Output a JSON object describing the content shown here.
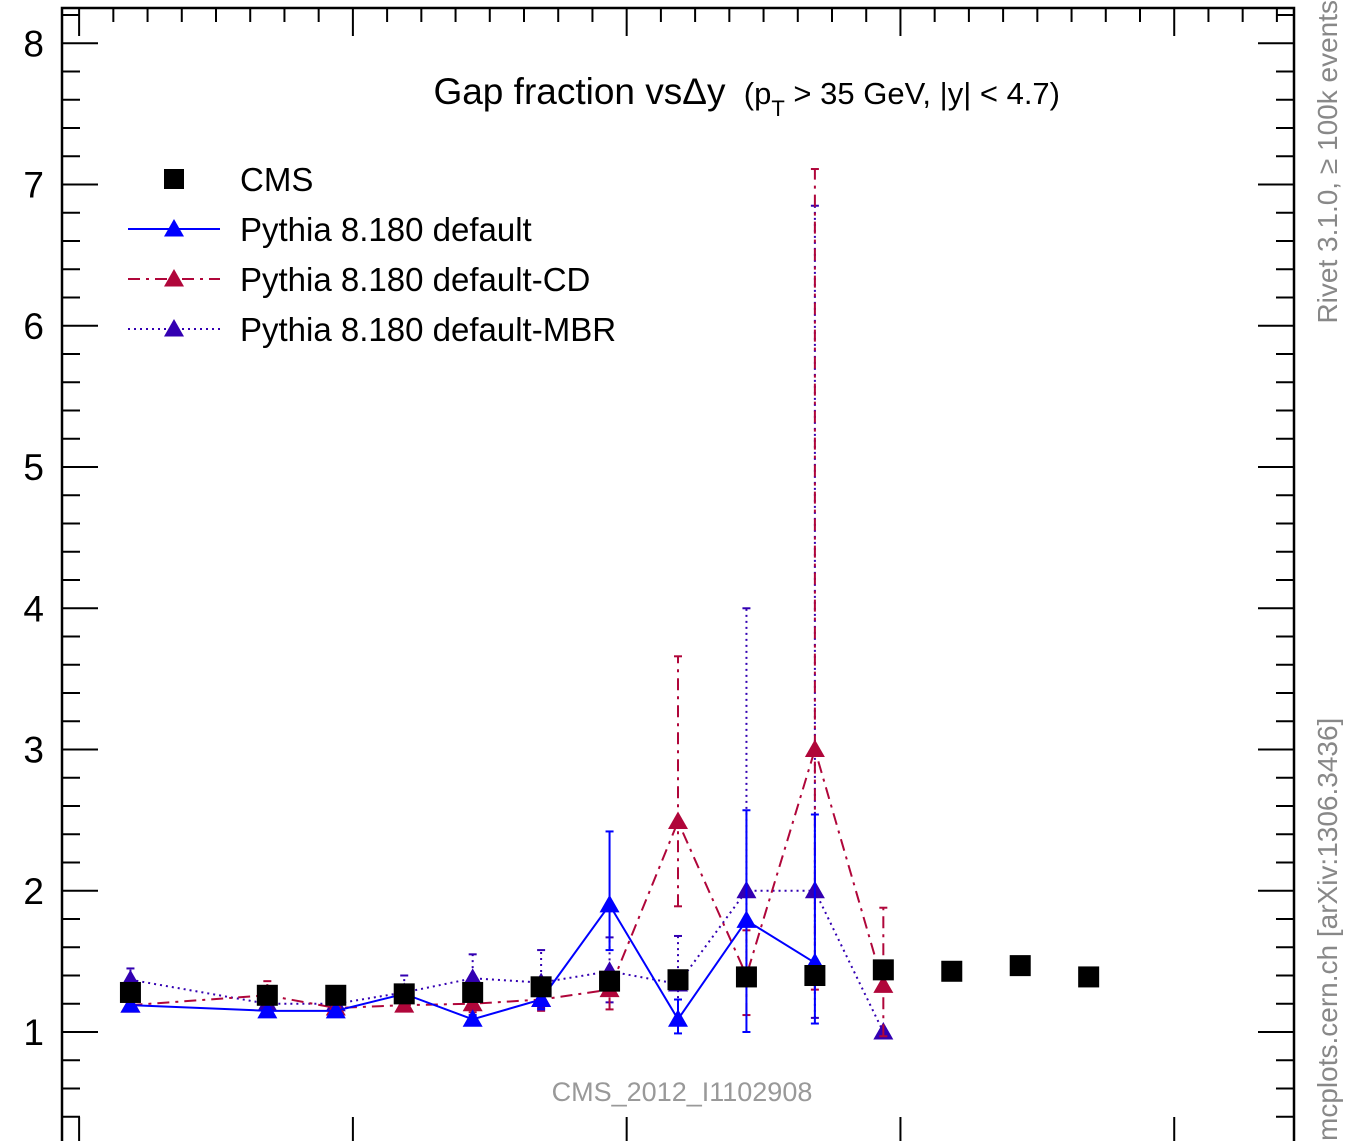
{
  "chart_data": {
    "type": "scatter",
    "title": "Gap fraction vsΔy",
    "title_suffix": "(p_T > 35 GeV, |y| < 4.7)",
    "title_suffix_parts": {
      "open": "(p",
      "sub": "T",
      "rest": " > 35 GeV, |y| < 4.7)"
    },
    "xlabel": "",
    "ylabel": "",
    "xlim": [
      0,
      9
    ],
    "ylim": [
      0.2,
      8.25
    ],
    "x_tick_positions": [
      0.125,
      2.125,
      4.125,
      6.125,
      8.125
    ],
    "y_ticks": [
      1,
      2,
      3,
      4,
      5,
      6,
      7,
      8
    ],
    "y_tick_labels": [
      "1",
      "2",
      "3",
      "4",
      "5",
      "6",
      "7",
      "8"
    ],
    "legend_position": "top-left",
    "grid": false,
    "series": [
      {
        "name": "CMS",
        "style": "marker-square",
        "color": "#000000",
        "x": [
          0.5,
          1.5,
          2.0,
          2.5,
          3.0,
          3.5,
          4.0,
          4.5,
          5.0,
          5.5,
          6.0,
          6.5,
          7.0,
          7.5
        ],
        "y": [
          1.28,
          1.26,
          1.26,
          1.27,
          1.28,
          1.32,
          1.36,
          1.37,
          1.39,
          1.4,
          1.44,
          1.43,
          1.47,
          1.39
        ],
        "yerr": [
          0.03,
          0.03,
          0.03,
          0.03,
          0.03,
          0.03,
          0.03,
          0.03,
          0.03,
          0.03,
          0.03,
          0.03,
          0.03,
          0.03
        ]
      },
      {
        "name": "Pythia 8.180 default",
        "style": "solid",
        "color": "#0000ff",
        "x": [
          0.5,
          1.5,
          2.0,
          2.5,
          3.0,
          3.5,
          4.0,
          4.5,
          5.0,
          5.5
        ],
        "y": [
          1.19,
          1.15,
          1.15,
          1.27,
          1.09,
          1.23,
          1.9,
          1.09,
          1.79,
          1.49
        ],
        "ylo": [
          1.17,
          1.13,
          1.13,
          1.24,
          1.06,
          1.16,
          1.58,
          0.99,
          1.0,
          1.06
        ],
        "yhi": [
          1.21,
          1.17,
          1.17,
          1.3,
          1.12,
          1.3,
          2.42,
          1.23,
          2.57,
          2.54
        ]
      },
      {
        "name": "Pythia 8.180 default-CD",
        "style": "dash-dot",
        "color": "#b0063a",
        "x": [
          0.5,
          1.5,
          2.0,
          2.5,
          3.0,
          3.5,
          4.0,
          4.5,
          5.0,
          5.5,
          6.0
        ],
        "y": [
          1.19,
          1.26,
          1.17,
          1.19,
          1.2,
          1.23,
          1.3,
          2.49,
          1.4,
          3.0,
          1.33
        ],
        "ylo": [
          1.17,
          1.19,
          1.15,
          1.17,
          1.14,
          1.15,
          1.16,
          1.89,
          1.12,
          1.3,
          0.97
        ],
        "yhi": [
          1.21,
          1.36,
          1.19,
          1.21,
          1.27,
          1.31,
          1.42,
          3.66,
          1.72,
          7.11,
          1.88
        ]
      },
      {
        "name": "Pythia 8.180 default-MBR",
        "style": "dotted",
        "color": "#3300b2",
        "x": [
          0.5,
          1.5,
          2.0,
          2.5,
          3.0,
          3.5,
          4.0,
          4.5,
          5.0,
          5.5,
          6.0
        ],
        "y": [
          1.37,
          1.2,
          1.2,
          1.28,
          1.38,
          1.35,
          1.43,
          1.34,
          2.0,
          2.0,
          1.0
        ],
        "ylo": [
          1.3,
          1.17,
          1.17,
          1.19,
          1.24,
          1.17,
          1.21,
          1.07,
          1.39,
          1.1,
          1.0
        ],
        "yhi": [
          1.45,
          1.23,
          1.23,
          1.4,
          1.55,
          1.58,
          1.67,
          1.68,
          4.0,
          6.85,
          1.0
        ]
      }
    ],
    "watermark": "CMS_2012_I1102908",
    "side_text_top": "Rivet 3.1.0, ≥ 100k events",
    "side_text_bottom": "mcplots.cern.ch [arXiv:1306.3436]"
  },
  "colors": {
    "cms": "#000000",
    "default": "#0000ff",
    "cd": "#b0063a",
    "mbr": "#3300b2",
    "watermark": "#999999",
    "side_text": "#888888"
  }
}
